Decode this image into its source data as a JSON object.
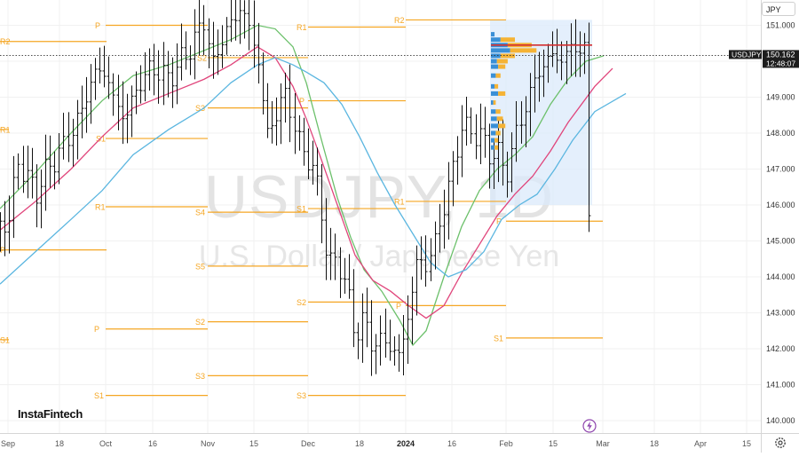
{
  "chart_data": {
    "type": "candlestick-ohlc-bars",
    "title": "USDJPY, 1D",
    "subtitle": "U.S. Dollar / Japanese Yen",
    "symbol_tag": "USDJPY",
    "last_price": "150.162",
    "countdown": "12:48:07",
    "currency": "JPY",
    "ylim": [
      139.7,
      152.2
    ],
    "y_ticks": [
      "151.000",
      "150.000",
      "149.000",
      "148.000",
      "147.000",
      "146.000",
      "145.000",
      "144.000",
      "143.000",
      "142.000",
      "141.000",
      "140.000"
    ],
    "x_ticks": [
      {
        "label": "Sep",
        "bold": false
      },
      {
        "label": "18",
        "bold": false
      },
      {
        "label": "Oct",
        "bold": false
      },
      {
        "label": "16",
        "bold": false
      },
      {
        "label": "Nov",
        "bold": false
      },
      {
        "label": "15",
        "bold": false
      },
      {
        "label": "Dec",
        "bold": false
      },
      {
        "label": "18",
        "bold": false
      },
      {
        "label": "2024",
        "bold": true
      },
      {
        "label": "16",
        "bold": false
      },
      {
        "label": "Feb",
        "bold": false
      },
      {
        "label": "15",
        "bold": false
      },
      {
        "label": "Mar",
        "bold": false
      },
      {
        "label": "18",
        "bold": false
      },
      {
        "label": "Apr",
        "bold": false
      },
      {
        "label": "15",
        "bold": false
      }
    ],
    "pivot_levels": [
      {
        "label": "R2",
        "value": 150.5
      },
      {
        "label": "R1",
        "value": 148.1
      },
      {
        "label": "P",
        "value": 147.0
      },
      {
        "label": "S1",
        "value": 146.0
      },
      {
        "label": "P",
        "value": 144.8
      },
      {
        "label": "S1",
        "value": 142.2
      },
      {
        "label": "R1",
        "value": 151.0
      },
      {
        "label": "P",
        "value": 150.1
      },
      {
        "label": "S1",
        "value": 148.7
      },
      {
        "label": "S2",
        "value": 145.8
      },
      {
        "label": "S3",
        "value": 144.3
      },
      {
        "label": "S4",
        "value": 142.8
      },
      {
        "label": "S5",
        "value": 141.3
      },
      {
        "label": "S2",
        "value": 140.8
      },
      {
        "label": "S3",
        "value": 140.7
      },
      {
        "label": "R1",
        "value": 150.95
      },
      {
        "label": "P",
        "value": 148.9
      },
      {
        "label": "S1",
        "value": 145.9
      },
      {
        "label": "S2",
        "value": 143.3
      },
      {
        "label": "S3",
        "value": 140.7
      },
      {
        "label": "R2",
        "value": 151.2
      },
      {
        "label": "R1",
        "value": 146.1
      },
      {
        "label": "P",
        "value": 143.2
      },
      {
        "label": "P",
        "value": 145.55
      },
      {
        "label": "S1",
        "value": 142.3
      }
    ],
    "volume_profile_bars": [
      {
        "price": 150.75,
        "buy": 3,
        "sell": 0
      },
      {
        "price": 150.6,
        "buy": 8,
        "sell": 12
      },
      {
        "price": 150.45,
        "buy": 14,
        "sell": 20
      },
      {
        "price": 150.3,
        "buy": 16,
        "sell": 22
      },
      {
        "price": 150.15,
        "buy": 8,
        "sell": 12
      },
      {
        "price": 150.0,
        "buy": 5,
        "sell": 9
      },
      {
        "price": 149.85,
        "buy": 6,
        "sell": 6
      },
      {
        "price": 149.6,
        "buy": 4,
        "sell": 4
      },
      {
        "price": 149.3,
        "buy": 3,
        "sell": 3
      },
      {
        "price": 149.1,
        "buy": 6,
        "sell": 6
      },
      {
        "price": 148.85,
        "buy": 2,
        "sell": 2
      },
      {
        "price": 148.6,
        "buy": 4,
        "sell": 4
      },
      {
        "price": 148.4,
        "buy": 5,
        "sell": 5
      },
      {
        "price": 148.2,
        "buy": 6,
        "sell": 6
      },
      {
        "price": 148.0,
        "buy": 4,
        "sell": 4
      },
      {
        "price": 147.8,
        "buy": 3,
        "sell": 3
      },
      {
        "price": 147.6,
        "buy": 3,
        "sell": 3
      }
    ],
    "poc_price": 150.45,
    "colors": {
      "pivot": "#f5a623",
      "ma_green": "#6cc06b",
      "ma_pink": "#e0457b",
      "ma_blue": "#5bb6e0",
      "bars": "#111111",
      "vp_buy": "#3a8fd6",
      "vp_sell": "#f5b335",
      "poc": "#d32f2f",
      "box": "#dbe9fb"
    }
  },
  "brand": "InstaFintech",
  "ui": {
    "currency_button": "JPY"
  }
}
